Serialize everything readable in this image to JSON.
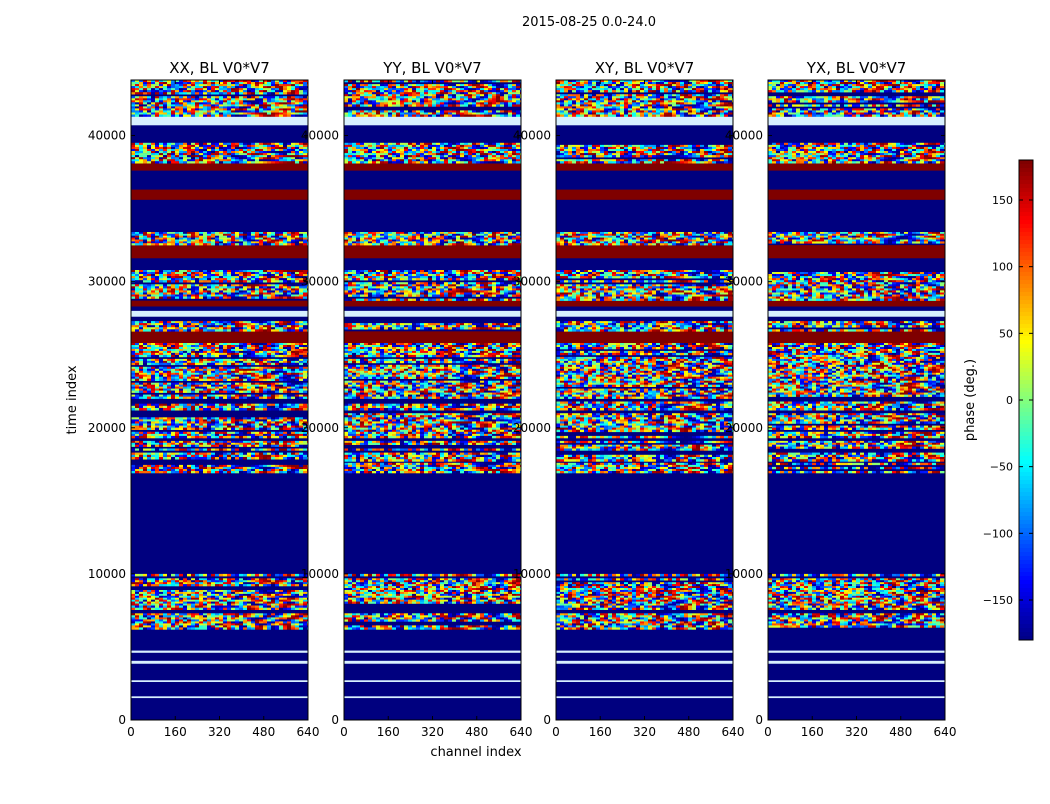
{
  "chart_data": {
    "type": "heatmap",
    "suptitle": "2015-08-25 0.0-24.0",
    "xlabel": "channel index",
    "ylabel": "time index",
    "xlim": [
      0,
      640
    ],
    "ylim": [
      0,
      43800
    ],
    "x_ticks": [
      0,
      160,
      320,
      480,
      640
    ],
    "y_ticks": [
      0,
      10000,
      20000,
      30000,
      40000
    ],
    "panels": [
      {
        "title": "XX, BL V0*V7",
        "polarization": "XX"
      },
      {
        "title": "YY, BL V0*V7",
        "polarization": "YY"
      },
      {
        "title": "XY, BL V0*V7",
        "polarization": "XY"
      },
      {
        "title": "YX, BL V0*V7",
        "polarization": "YX"
      }
    ],
    "colorbar": {
      "label": "phase (deg.)",
      "range": [
        -180,
        180
      ],
      "ticks": [
        -150,
        -100,
        -50,
        0,
        50,
        100,
        150
      ],
      "colormap": "jet"
    },
    "bands_description": "time ranges [start, end, pattern] per visual band (shared across panels)",
    "bands": [
      [
        0,
        1500,
        "empty"
      ],
      [
        1500,
        1620,
        "stripe"
      ],
      [
        1620,
        2600,
        "empty"
      ],
      [
        2600,
        2720,
        "stripe"
      ],
      [
        2720,
        3850,
        "empty"
      ],
      [
        3850,
        4050,
        "stripe"
      ],
      [
        4050,
        4600,
        "empty"
      ],
      [
        4600,
        4750,
        "stripe"
      ],
      [
        4750,
        6200,
        "empty"
      ],
      [
        6200,
        7300,
        "noise"
      ],
      [
        7300,
        7550,
        "empty"
      ],
      [
        7550,
        7700,
        "noise"
      ],
      [
        7700,
        9700,
        "noise"
      ],
      [
        9700,
        9850,
        "empty"
      ],
      [
        9850,
        10000,
        "noise"
      ],
      [
        10000,
        16900,
        "empty"
      ],
      [
        16900,
        17600,
        "noise"
      ],
      [
        17600,
        17700,
        "empty"
      ],
      [
        17700,
        18300,
        "noise"
      ],
      [
        18300,
        18450,
        "empty"
      ],
      [
        18450,
        19100,
        "noise"
      ],
      [
        19100,
        19300,
        "empty"
      ],
      [
        19300,
        21000,
        "noise"
      ],
      [
        21000,
        21200,
        "empty"
      ],
      [
        21200,
        21800,
        "noise"
      ],
      [
        21800,
        22000,
        "empty"
      ],
      [
        22000,
        25800,
        "noise"
      ],
      [
        25800,
        26600,
        "red"
      ],
      [
        26600,
        27300,
        "noise"
      ],
      [
        27300,
        27600,
        "empty"
      ],
      [
        27600,
        28000,
        "stripe"
      ],
      [
        28000,
        28300,
        "empty"
      ],
      [
        28300,
        28700,
        "red"
      ],
      [
        28700,
        30800,
        "noise"
      ],
      [
        30800,
        31600,
        "empty"
      ],
      [
        31600,
        32500,
        "red"
      ],
      [
        32500,
        33400,
        "noise"
      ],
      [
        33400,
        34900,
        "empty"
      ],
      [
        34900,
        35600,
        "empty"
      ],
      [
        35600,
        36300,
        "red"
      ],
      [
        36300,
        37600,
        "empty"
      ],
      [
        37600,
        38100,
        "red"
      ],
      [
        38100,
        39500,
        "noise"
      ],
      [
        39500,
        40700,
        "empty"
      ],
      [
        40700,
        41300,
        "stripe"
      ],
      [
        41300,
        43800,
        "noise"
      ]
    ]
  }
}
